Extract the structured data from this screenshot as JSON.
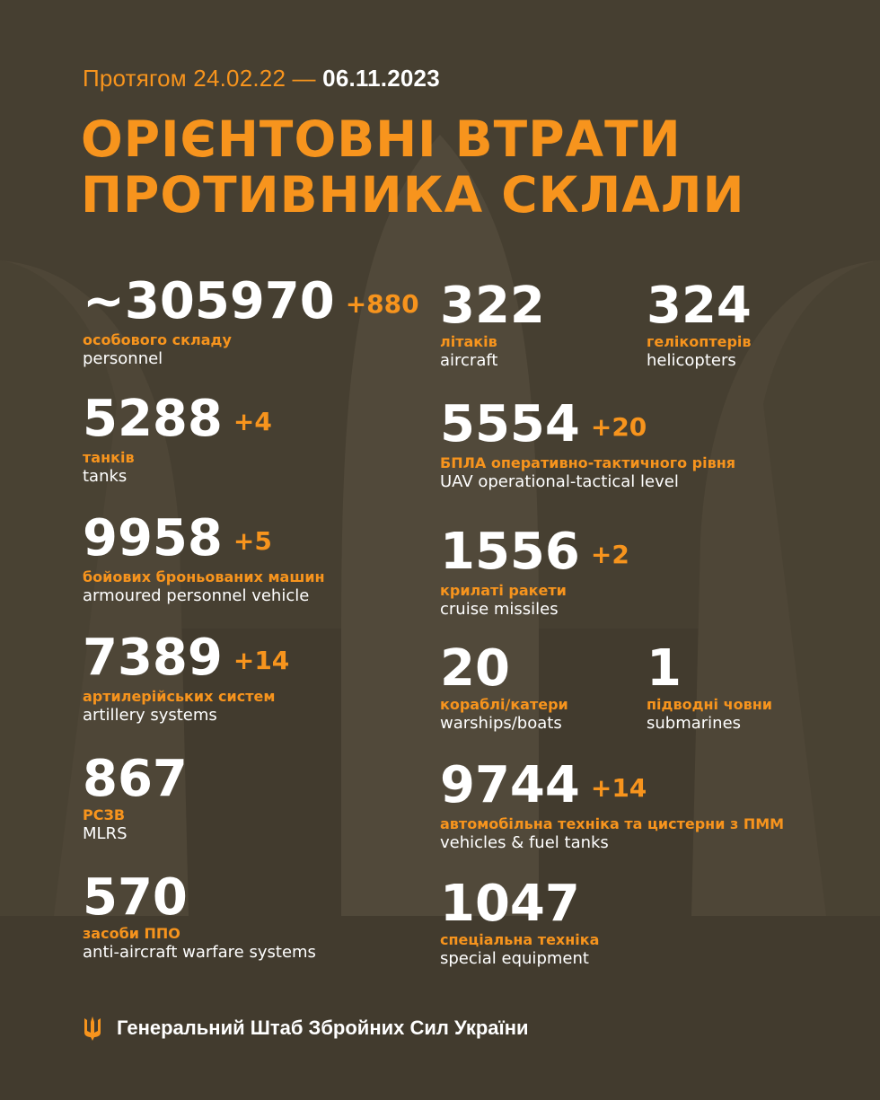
{
  "header": {
    "period_prefix": "Протягом 24.02.22 —",
    "period_date": "06.11.2023",
    "title_line1": "ОРІЄНТОВНІ ВТРАТИ",
    "title_line2": "ПРОТИВНИКА СКЛАЛИ"
  },
  "colors": {
    "accent": "#f7941d",
    "background": "#463f31",
    "text": "#ffffff"
  },
  "left": [
    {
      "value": "~305970",
      "delta": "+880",
      "ua": "особового складу",
      "en": "personnel"
    },
    {
      "value": "5288",
      "delta": "+4",
      "ua": "танків",
      "en": "tanks"
    },
    {
      "value": "9958",
      "delta": "+5",
      "ua": "бойових броньованих машин",
      "en": "armoured personnel vehicle"
    },
    {
      "value": "7389",
      "delta": "+14",
      "ua": "артилерійських систем",
      "en": "artillery systems"
    },
    {
      "value": "867",
      "ua": "РСЗВ",
      "en": "MLRS"
    },
    {
      "value": "570",
      "ua": "засоби ППО",
      "en": "anti-aircraft warfare systems"
    }
  ],
  "right": [
    {
      "value": "322",
      "ua": "літаків",
      "en": "aircraft"
    },
    {
      "value": "324",
      "ua": "гелікоптерів",
      "en": "helicopters"
    },
    {
      "value": "5554",
      "delta": "+20",
      "ua": "БПЛА оперативно-тактичного рівня",
      "en": "UAV operational-tactical level"
    },
    {
      "value": "1556",
      "delta": "+2",
      "ua": "крилаті ракети",
      "en": "cruise missiles"
    },
    {
      "value": "20",
      "ua": "кораблі/катери",
      "en": "warships/boats"
    },
    {
      "value": "1",
      "ua": "підводні човни",
      "en": "submarines"
    },
    {
      "value": "9744",
      "delta": "+14",
      "ua": "автомобільна техніка та цистерни з ПММ",
      "en": "vehicles & fuel tanks"
    },
    {
      "value": "1047",
      "ua": "спеціальна техніка",
      "en": "special equipment"
    }
  ],
  "footer": {
    "icon": "trident-icon",
    "text": "Генеральний Штаб Збройних Сил України"
  }
}
